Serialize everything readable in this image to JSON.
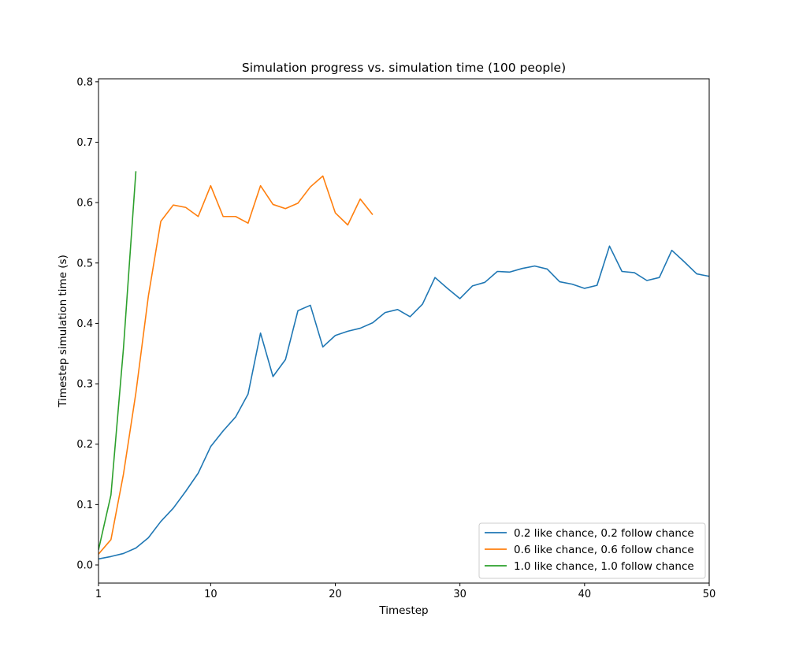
{
  "chart_data": {
    "type": "line",
    "title": "Simulation progress vs. simulation time (100 people)",
    "xlabel": "Timestep",
    "ylabel": "Timestep simulation time (s)",
    "xlim": [
      1,
      50
    ],
    "ylim": [
      -0.03,
      0.805
    ],
    "xticks": [
      1,
      10,
      20,
      30,
      40,
      50
    ],
    "yticks": [
      0.0,
      0.1,
      0.2,
      0.3,
      0.4,
      0.5,
      0.6,
      0.7,
      0.8
    ],
    "grid": false,
    "legend_position": "lower-right",
    "series": [
      {
        "name": "0.2 like chance, 0.2 follow chance",
        "color": "#1f77b4",
        "x": [
          1,
          2,
          3,
          4,
          5,
          6,
          7,
          8,
          9,
          10,
          11,
          12,
          13,
          14,
          15,
          16,
          17,
          18,
          19,
          20,
          21,
          22,
          23,
          24,
          25,
          26,
          27,
          28,
          29,
          30,
          31,
          32,
          33,
          34,
          35,
          36,
          37,
          38,
          39,
          40,
          41,
          42,
          43,
          44,
          45,
          46,
          47,
          48,
          49,
          50
        ],
        "values": [
          0.01,
          0.014,
          0.019,
          0.028,
          0.045,
          0.072,
          0.094,
          0.122,
          0.152,
          0.196,
          0.222,
          0.245,
          0.283,
          0.384,
          0.312,
          0.34,
          0.421,
          0.43,
          0.361,
          0.38,
          0.387,
          0.392,
          0.401,
          0.418,
          0.423,
          0.411,
          0.432,
          0.476,
          0.458,
          0.441,
          0.462,
          0.468,
          0.486,
          0.485,
          0.491,
          0.495,
          0.49,
          0.469,
          0.465,
          0.458,
          0.463,
          0.528,
          0.486,
          0.484,
          0.471,
          0.476,
          0.521,
          0.502,
          0.482,
          0.478
        ]
      },
      {
        "name": "0.6 like chance, 0.6 follow chance",
        "color": "#ff7f0e",
        "x": [
          1,
          2,
          3,
          4,
          5,
          6,
          7,
          8,
          9,
          10,
          11,
          12,
          13,
          14,
          15,
          16,
          17,
          18,
          19,
          20,
          21,
          22,
          23
        ],
        "values": [
          0.018,
          0.042,
          0.15,
          0.285,
          0.445,
          0.569,
          0.596,
          0.592,
          0.577,
          0.628,
          0.577,
          0.577,
          0.566,
          0.628,
          0.597,
          0.59,
          0.599,
          0.626,
          0.644,
          0.583,
          0.563,
          0.606,
          0.58
        ]
      },
      {
        "name": "1.0 like chance, 1.0 follow chance",
        "color": "#2ca02c",
        "x": [
          1,
          2,
          3,
          4
        ],
        "values": [
          0.025,
          0.116,
          0.358,
          0.652
        ]
      }
    ]
  }
}
